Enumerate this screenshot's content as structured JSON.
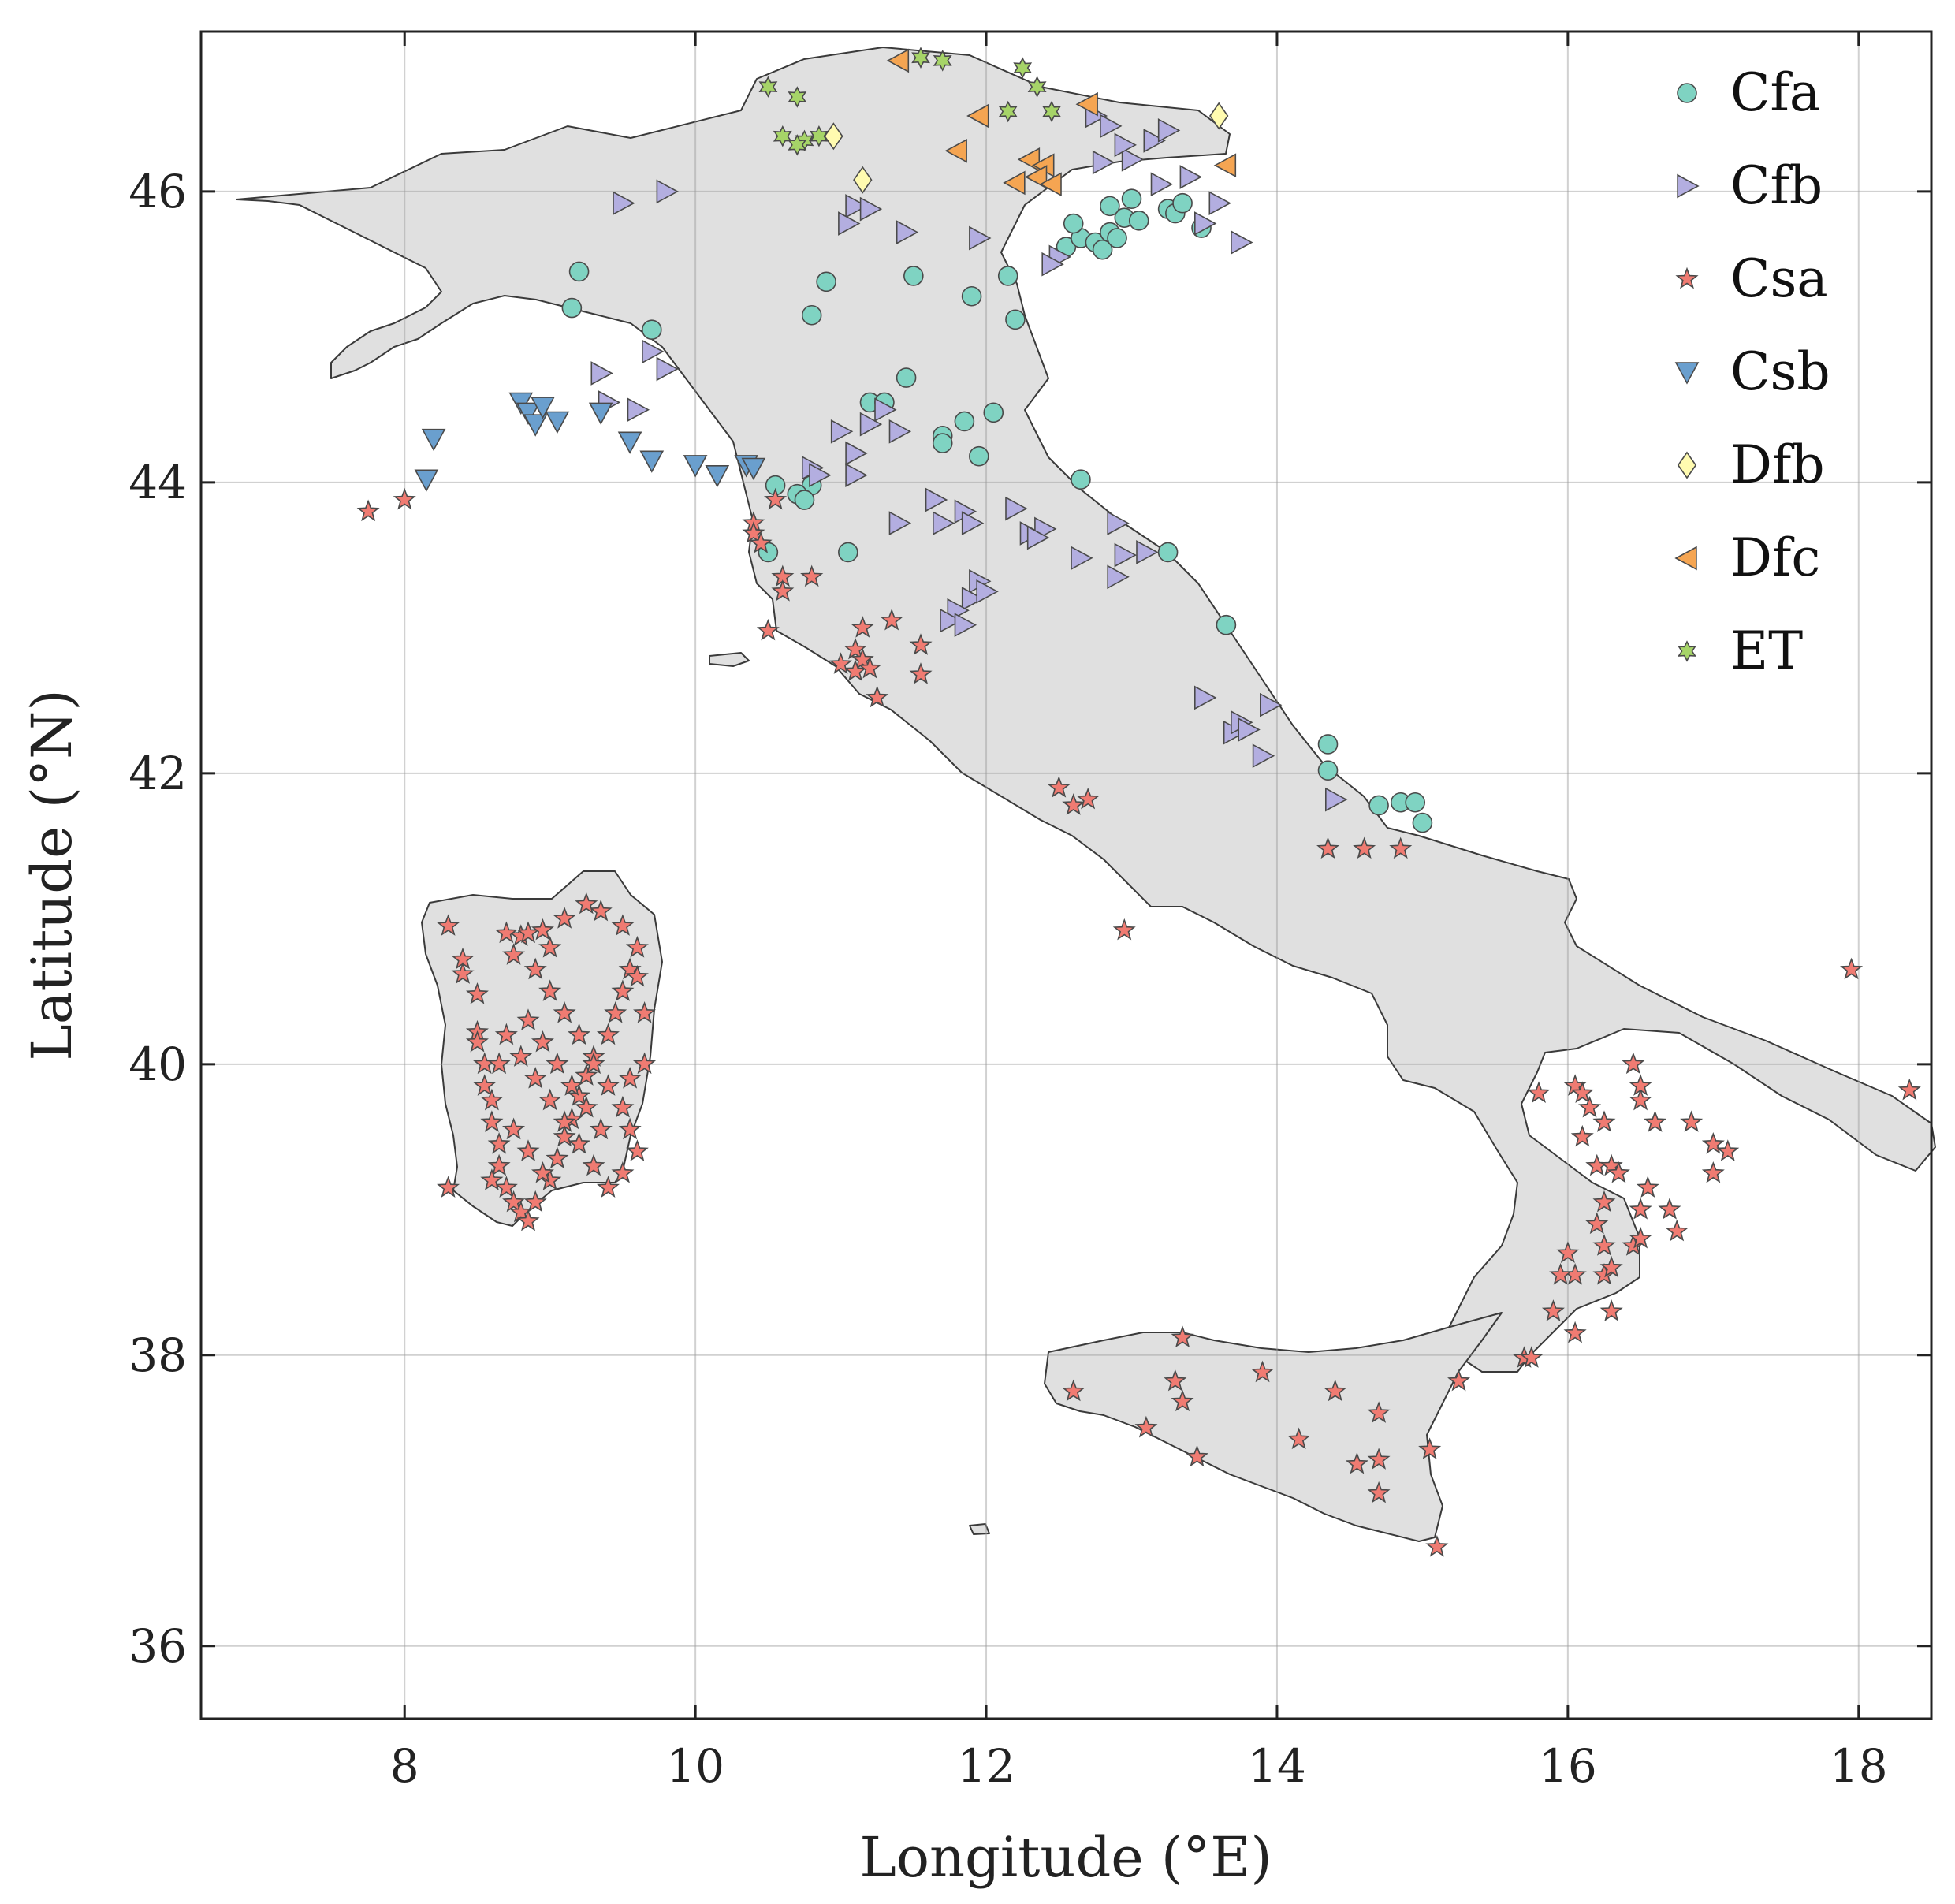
{
  "chart_data": {
    "type": "scatter",
    "subtype": "map",
    "xlabel": "Longitude (°E)",
    "ylabel": "Latitude (°N)",
    "xlim": [
      6.6,
      18.5
    ],
    "ylim": [
      35.5,
      47.1
    ],
    "xticks": [
      8,
      10,
      12,
      14,
      16,
      18
    ],
    "yticks": [
      36,
      38,
      40,
      42,
      44,
      46
    ],
    "grid": true,
    "legend_position": "top-right",
    "land_color": "#e0e0e0",
    "series": [
      {
        "name": "Cfa",
        "marker": "circle",
        "color": "#7fd3c2",
        "points": [
          [
            9.2,
            45.45
          ],
          [
            9.15,
            45.2
          ],
          [
            9.7,
            45.05
          ],
          [
            10.9,
            45.38
          ],
          [
            10.8,
            45.15
          ],
          [
            11.5,
            45.42
          ],
          [
            11.9,
            45.28
          ],
          [
            12.2,
            45.12
          ],
          [
            12.15,
            45.42
          ],
          [
            11.45,
            44.72
          ],
          [
            11.2,
            44.55
          ],
          [
            11.3,
            44.55
          ],
          [
            11.85,
            44.42
          ],
          [
            12.05,
            44.48
          ],
          [
            11.7,
            44.32
          ],
          [
            11.7,
            44.27
          ],
          [
            11.95,
            44.18
          ],
          [
            10.55,
            43.98
          ],
          [
            10.8,
            43.98
          ],
          [
            10.7,
            43.92
          ],
          [
            10.75,
            43.88
          ],
          [
            10.5,
            43.52
          ],
          [
            11.05,
            43.52
          ],
          [
            12.65,
            44.02
          ],
          [
            13.25,
            43.52
          ],
          [
            13.65,
            43.02
          ],
          [
            14.35,
            42.2
          ],
          [
            14.35,
            42.02
          ],
          [
            14.7,
            41.78
          ],
          [
            14.85,
            41.8
          ],
          [
            14.95,
            41.8
          ],
          [
            15.0,
            41.66
          ],
          [
            12.55,
            45.62
          ],
          [
            12.65,
            45.68
          ],
          [
            12.75,
            45.65
          ],
          [
            12.8,
            45.6
          ],
          [
            12.85,
            45.72
          ],
          [
            12.9,
            45.68
          ],
          [
            12.95,
            45.82
          ],
          [
            13.0,
            45.95
          ],
          [
            13.05,
            45.8
          ],
          [
            13.25,
            45.88
          ],
          [
            13.3,
            45.85
          ],
          [
            13.35,
            45.92
          ],
          [
            13.48,
            45.75
          ],
          [
            12.6,
            45.78
          ],
          [
            12.85,
            45.9
          ]
        ]
      },
      {
        "name": "Cfb",
        "marker": "triangle-right",
        "color": "#b3aee0",
        "points": [
          [
            9.5,
            45.92
          ],
          [
            9.8,
            46.0
          ],
          [
            11.1,
            45.9
          ],
          [
            11.2,
            45.88
          ],
          [
            11.05,
            45.78
          ],
          [
            11.45,
            45.72
          ],
          [
            11.95,
            45.68
          ],
          [
            9.35,
            44.75
          ],
          [
            9.4,
            44.55
          ],
          [
            9.6,
            44.5
          ],
          [
            9.7,
            44.9
          ],
          [
            9.8,
            44.78
          ],
          [
            11.0,
            44.35
          ],
          [
            11.1,
            44.2
          ],
          [
            11.2,
            44.4
          ],
          [
            11.3,
            44.5
          ],
          [
            11.4,
            44.35
          ],
          [
            11.1,
            44.05
          ],
          [
            10.8,
            44.1
          ],
          [
            10.85,
            44.05
          ],
          [
            11.4,
            43.72
          ],
          [
            11.65,
            43.88
          ],
          [
            11.7,
            43.72
          ],
          [
            11.85,
            43.8
          ],
          [
            11.9,
            43.72
          ],
          [
            12.2,
            43.82
          ],
          [
            12.3,
            43.65
          ],
          [
            12.4,
            43.68
          ],
          [
            12.65,
            43.48
          ],
          [
            12.9,
            43.72
          ],
          [
            12.95,
            43.5
          ],
          [
            13.1,
            43.52
          ],
          [
            12.9,
            43.35
          ],
          [
            11.95,
            43.32
          ],
          [
            11.9,
            43.2
          ],
          [
            12.0,
            43.25
          ],
          [
            11.8,
            43.12
          ],
          [
            11.75,
            43.05
          ],
          [
            11.85,
            43.02
          ],
          [
            12.35,
            43.62
          ],
          [
            13.5,
            42.52
          ],
          [
            13.7,
            42.28
          ],
          [
            13.75,
            42.35
          ],
          [
            13.8,
            42.3
          ],
          [
            13.9,
            42.12
          ],
          [
            13.95,
            42.47
          ],
          [
            14.4,
            41.82
          ],
          [
            12.75,
            46.52
          ],
          [
            12.85,
            46.45
          ],
          [
            12.8,
            46.2
          ],
          [
            13.0,
            46.22
          ],
          [
            12.95,
            46.32
          ],
          [
            13.15,
            46.35
          ],
          [
            13.25,
            46.42
          ],
          [
            13.2,
            46.05
          ],
          [
            13.4,
            46.1
          ],
          [
            13.5,
            45.78
          ],
          [
            13.6,
            45.92
          ],
          [
            13.75,
            45.65
          ],
          [
            12.5,
            45.55
          ],
          [
            12.45,
            45.5
          ]
        ]
      },
      {
        "name": "Csa",
        "marker": "star",
        "color": "#f07b72",
        "points": [
          [
            7.75,
            43.8
          ],
          [
            8.0,
            43.88
          ],
          [
            10.4,
            43.72
          ],
          [
            10.4,
            43.65
          ],
          [
            10.45,
            43.58
          ],
          [
            10.55,
            43.88
          ],
          [
            10.6,
            43.35
          ],
          [
            10.6,
            43.25
          ],
          [
            10.8,
            43.35
          ],
          [
            10.5,
            42.98
          ],
          [
            11.1,
            42.85
          ],
          [
            11.15,
            42.78
          ],
          [
            11.1,
            42.7
          ],
          [
            11.2,
            42.72
          ],
          [
            11.15,
            43.0
          ],
          [
            11.35,
            43.05
          ],
          [
            11.0,
            42.75
          ],
          [
            11.25,
            42.52
          ],
          [
            11.55,
            42.88
          ],
          [
            11.55,
            42.68
          ],
          [
            12.5,
            41.9
          ],
          [
            12.6,
            41.78
          ],
          [
            12.7,
            41.82
          ],
          [
            12.95,
            40.92
          ],
          [
            14.35,
            41.48
          ],
          [
            14.6,
            41.48
          ],
          [
            14.85,
            41.48
          ],
          [
            8.3,
            40.95
          ],
          [
            8.4,
            40.72
          ],
          [
            8.4,
            40.62
          ],
          [
            8.5,
            40.48
          ],
          [
            8.5,
            40.22
          ],
          [
            8.5,
            40.15
          ],
          [
            8.55,
            40.0
          ],
          [
            8.55,
            39.85
          ],
          [
            8.6,
            39.75
          ],
          [
            8.6,
            39.6
          ],
          [
            8.65,
            39.45
          ],
          [
            8.65,
            39.3
          ],
          [
            8.7,
            39.15
          ],
          [
            8.75,
            39.05
          ],
          [
            8.8,
            38.98
          ],
          [
            8.85,
            38.92
          ],
          [
            8.9,
            39.05
          ],
          [
            9.0,
            39.2
          ],
          [
            9.05,
            39.35
          ],
          [
            9.1,
            39.5
          ],
          [
            9.15,
            39.62
          ],
          [
            9.2,
            39.78
          ],
          [
            9.25,
            39.92
          ],
          [
            9.3,
            40.05
          ],
          [
            9.4,
            40.2
          ],
          [
            9.45,
            40.35
          ],
          [
            9.5,
            40.5
          ],
          [
            9.55,
            40.65
          ],
          [
            9.6,
            40.8
          ],
          [
            9.5,
            40.95
          ],
          [
            9.35,
            41.05
          ],
          [
            9.25,
            41.1
          ],
          [
            9.1,
            41.0
          ],
          [
            8.95,
            40.92
          ],
          [
            8.8,
            40.88
          ],
          [
            8.75,
            40.75
          ],
          [
            8.9,
            40.65
          ],
          [
            9.0,
            40.5
          ],
          [
            9.1,
            40.35
          ],
          [
            9.2,
            40.2
          ],
          [
            9.3,
            40.0
          ],
          [
            9.4,
            39.85
          ],
          [
            9.5,
            39.7
          ],
          [
            9.55,
            39.55
          ],
          [
            9.6,
            39.4
          ],
          [
            9.5,
            39.25
          ],
          [
            9.4,
            39.15
          ],
          [
            9.3,
            39.3
          ],
          [
            9.2,
            39.45
          ],
          [
            9.1,
            39.6
          ],
          [
            9.0,
            39.75
          ],
          [
            8.9,
            39.9
          ],
          [
            8.8,
            40.05
          ],
          [
            8.7,
            40.2
          ],
          [
            8.85,
            40.3
          ],
          [
            8.95,
            40.15
          ],
          [
            9.05,
            40.0
          ],
          [
            9.15,
            39.85
          ],
          [
            9.25,
            39.7
          ],
          [
            9.35,
            39.55
          ],
          [
            8.75,
            39.55
          ],
          [
            8.85,
            39.4
          ],
          [
            8.95,
            39.25
          ],
          [
            9.55,
            39.9
          ],
          [
            9.65,
            40.0
          ],
          [
            9.65,
            40.35
          ],
          [
            9.6,
            40.6
          ],
          [
            8.65,
            40.0
          ],
          [
            8.6,
            39.2
          ],
          [
            8.3,
            39.15
          ],
          [
            8.7,
            40.9
          ],
          [
            8.85,
            40.9
          ],
          [
            9.0,
            40.8
          ],
          [
            15.8,
            39.8
          ],
          [
            16.05,
            39.85
          ],
          [
            16.1,
            39.8
          ],
          [
            16.15,
            39.7
          ],
          [
            16.1,
            39.5
          ],
          [
            16.25,
            39.6
          ],
          [
            16.2,
            39.3
          ],
          [
            16.3,
            39.3
          ],
          [
            16.35,
            39.25
          ],
          [
            16.25,
            39.05
          ],
          [
            16.2,
            38.9
          ],
          [
            16.25,
            38.75
          ],
          [
            16.0,
            38.7
          ],
          [
            16.05,
            38.55
          ],
          [
            15.95,
            38.55
          ],
          [
            15.9,
            38.3
          ],
          [
            16.05,
            38.15
          ],
          [
            16.3,
            38.3
          ],
          [
            16.25,
            38.55
          ],
          [
            16.3,
            38.6
          ],
          [
            16.45,
            38.75
          ],
          [
            16.5,
            38.8
          ],
          [
            16.5,
            39.0
          ],
          [
            16.55,
            39.15
          ],
          [
            16.6,
            39.6
          ],
          [
            16.5,
            39.75
          ],
          [
            16.5,
            39.85
          ],
          [
            16.45,
            40.0
          ],
          [
            16.85,
            39.6
          ],
          [
            17.0,
            39.45
          ],
          [
            17.1,
            39.4
          ],
          [
            17.0,
            39.25
          ],
          [
            16.7,
            39.0
          ],
          [
            16.75,
            38.85
          ],
          [
            15.7,
            37.98
          ],
          [
            15.75,
            37.98
          ],
          [
            15.1,
            36.68
          ],
          [
            15.05,
            37.35
          ],
          [
            15.25,
            37.82
          ],
          [
            14.7,
            37.6
          ],
          [
            14.7,
            37.28
          ],
          [
            14.7,
            37.05
          ],
          [
            14.55,
            37.25
          ],
          [
            14.4,
            37.75
          ],
          [
            14.15,
            37.42
          ],
          [
            13.9,
            37.88
          ],
          [
            13.3,
            37.82
          ],
          [
            13.35,
            37.68
          ],
          [
            13.1,
            37.5
          ],
          [
            13.35,
            38.12
          ],
          [
            12.6,
            37.75
          ],
          [
            13.45,
            37.3
          ],
          [
            17.95,
            40.65
          ],
          [
            18.35,
            39.82
          ]
        ]
      },
      {
        "name": "Csb",
        "marker": "triangle-down",
        "color": "#6a9fce",
        "points": [
          [
            8.2,
            44.3
          ],
          [
            8.15,
            44.02
          ],
          [
            8.8,
            44.55
          ],
          [
            8.85,
            44.48
          ],
          [
            8.9,
            44.4
          ],
          [
            8.95,
            44.52
          ],
          [
            9.05,
            44.42
          ],
          [
            9.35,
            44.48
          ],
          [
            9.55,
            44.28
          ],
          [
            9.7,
            44.15
          ],
          [
            10.0,
            44.12
          ],
          [
            10.15,
            44.05
          ],
          [
            10.35,
            44.12
          ],
          [
            10.4,
            44.1
          ]
        ]
      },
      {
        "name": "Dfb",
        "marker": "diamond",
        "color": "#fffbb0",
        "points": [
          [
            10.95,
            46.38
          ],
          [
            11.15,
            46.08
          ],
          [
            13.6,
            46.52
          ]
        ]
      },
      {
        "name": "Dfc",
        "marker": "triangle-left",
        "color": "#f5a552",
        "points": [
          [
            11.4,
            46.9
          ],
          [
            11.95,
            46.52
          ],
          [
            11.8,
            46.28
          ],
          [
            12.2,
            46.06
          ],
          [
            12.3,
            46.22
          ],
          [
            12.4,
            46.18
          ],
          [
            12.35,
            46.1
          ],
          [
            12.45,
            46.05
          ],
          [
            12.7,
            46.6
          ],
          [
            13.65,
            46.18
          ]
        ]
      },
      {
        "name": "ET",
        "marker": "hexagram",
        "color": "#a6d468",
        "points": [
          [
            10.5,
            46.72
          ],
          [
            10.7,
            46.65
          ],
          [
            10.6,
            46.38
          ],
          [
            10.75,
            46.35
          ],
          [
            10.85,
            46.38
          ],
          [
            10.7,
            46.32
          ],
          [
            11.55,
            46.92
          ],
          [
            11.7,
            46.9
          ],
          [
            12.25,
            46.85
          ],
          [
            12.35,
            46.72
          ],
          [
            12.15,
            46.55
          ],
          [
            12.45,
            46.55
          ]
        ]
      }
    ]
  }
}
